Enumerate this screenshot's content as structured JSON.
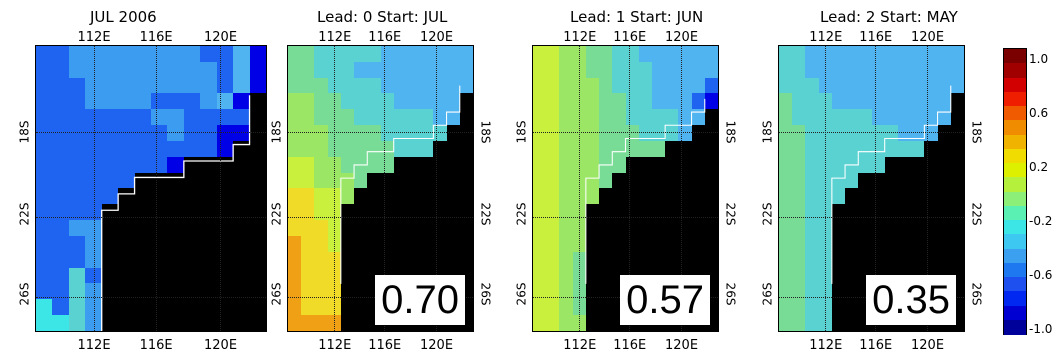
{
  "panels": [
    {
      "title": "JUL 2006",
      "score": "",
      "top_ticks": [
        "112E",
        "116E",
        "120E"
      ],
      "bottom_ticks": [
        "112E",
        "116E",
        "120E"
      ],
      "left_ticks": [
        "18S",
        "22S",
        "26S"
      ],
      "right_ticks": [],
      "palette_rows": [
        "BBCCCCCCCCBBDA",
        "BBCCCCCCCCCBDA",
        "BBBCCCCCCCCBDA",
        "BBBCCCCBBBCDAX",
        "BBBBBBBCCBBBBX",
        "BBBBBBBBCBBAAX",
        "BBBBBBBBBBBAXX",
        "BBBBBBBBAXXXXX",
        "BBBBBBXXXXXXXX",
        "BBBBBXXXXXXXXX",
        "BBBBXXXXXXXXXX",
        "BBCCXXXXXXXXXX",
        "BBBCXXXXXXXXXX",
        "BBBCXXXXXXXXXX",
        "BBEBXXXXXXXXXX",
        "BBECXXXXXXXXXX",
        "FBECXXXXXXXXXX",
        "FFECXXXXXXXXXX"
      ]
    },
    {
      "title": "Lead: 0 Start: JUL",
      "score": "0.70",
      "top_ticks": [
        "112E",
        "116E",
        "120E"
      ],
      "bottom_ticks": [
        "112E",
        "116E",
        "120E"
      ],
      "left_ticks": [
        "18S",
        "22S",
        "26S"
      ],
      "right_ticks": [
        "18S",
        "22S",
        "26S"
      ],
      "palette_rows": [
        "GGEEEEEDDDDDDD",
        "GGEEEDDDDDDDDD",
        "GGGEEEEDDDDDDD",
        "HHGGEEEEDDDDDX",
        "HHGGGEEEEEEDDX",
        "HHHGGGGEEEEEXX",
        "HHHGGGGGEEEXXX",
        "IIHHGGGGXXXXXX",
        "IIHHHGXXXXXXXX",
        "JJIIHXXXXXXXXX",
        "JJIIXXXXXXXXXX",
        "JJJIXXXXXXXXXX",
        "KJJIXXXXXXXXXX",
        "KJJJXXXXXXXXXX",
        "KJJJXXXXXXXXXX",
        "KJJJXXXXXXXXXX",
        "KJJJXXXXXXXXXX",
        "KKKKXXXXXXXXXX"
      ]
    },
    {
      "title": "Lead: 1 Start: JUN",
      "score": "0.57",
      "top_ticks": [
        "112E",
        "116E",
        "120E"
      ],
      "bottom_ticks": [
        "112E",
        "116E",
        "120E"
      ],
      "left_ticks": [
        "18S",
        "22S",
        "26S"
      ],
      "right_ticks": [
        "18S",
        "22S",
        "26S"
      ],
      "palette_rows": [
        "IIHHGGEEDDDDDD",
        "IIHHGGEEEDDDDD",
        "IIHHHGEEEDDDDB",
        "IIHHHGGEEDDDBA",
        "IIHHHGGEEEEDDX",
        "IIHHHGGGEEEDXX",
        "IIHHHGGGGGXXXX",
        "IIHHHGGXXXXXXX",
        "IIHHHGXXXXXXXX",
        "IIHHHXXXXXXXXX",
        "IIHHXXXXXXXXXX",
        "IIHHXXXXXXXXXX",
        "IIHHXXXXXXXXXX",
        "IIHGXXXXXXXXXX",
        "IIHGXXXXXXXXXX",
        "IIHGXXXXXXXXXX",
        "IIHGXXXXXXXXXX",
        "IIHHXXXXXXXXXX"
      ]
    },
    {
      "title": "Lead: 2 Start: MAY",
      "score": "0.35",
      "top_ticks": [
        "112E",
        "116E",
        "120E"
      ],
      "bottom_ticks": [
        "112E",
        "116E",
        "120E"
      ],
      "left_ticks": [
        "18S",
        "22S",
        "26S"
      ],
      "right_ticks": [
        "18S",
        "22S",
        "26S"
      ],
      "palette_rows": [
        "EEDDDDDDDDDDDD",
        "EEDDDDDDDDDDDD",
        "EEEDDDDDDDDDDD",
        "GEEEDDDDDDDDDX",
        "GEEEEEEDDDDDDX",
        "GGEEEEEEEDDDXX",
        "GGEEEEEEEEEXXX",
        "GGEEEEEEXXXXXX",
        "GGEEEEXXXXXXXX",
        "GGEEEXXXXXXXXX",
        "GGEEXXXXXXXXXX",
        "GGEEXXXXXXXXXX",
        "GGEEXXXXXXXXXX",
        "GGEEXXXXXXXXXX",
        "GGEEXXXXXXXXXX",
        "GGEEXXXXXXXXXX",
        "GGEEXXXXXXXXXX",
        "GGEEXXXXXXXXXX"
      ]
    }
  ],
  "palette": {
    "A": "#0000e6",
    "B": "#1e64f0",
    "C": "#3c9cf0",
    "D": "#50b4f0",
    "E": "#5ad2d2",
    "F": "#3ce6e6",
    "G": "#78dc96",
    "H": "#9be664",
    "I": "#c8f03c",
    "J": "#f0dc28",
    "K": "#f0a014",
    "X": "#000000"
  },
  "colorbar": {
    "labels": [
      "1.0",
      "0.6",
      "0.2",
      "-0.2",
      "-0.6",
      "-1.0"
    ],
    "colors": [
      "#7a0000",
      "#a00000",
      "#d20000",
      "#f01e00",
      "#f05a00",
      "#f08c00",
      "#f0b400",
      "#f0dc00",
      "#dcf000",
      "#b4f03c",
      "#8cf078",
      "#5af0b4",
      "#3ce6e6",
      "#3cc8f0",
      "#3ca0f0",
      "#1e78f0",
      "#1e50f0",
      "#0028f0",
      "#0000d2",
      "#00009a"
    ]
  }
}
